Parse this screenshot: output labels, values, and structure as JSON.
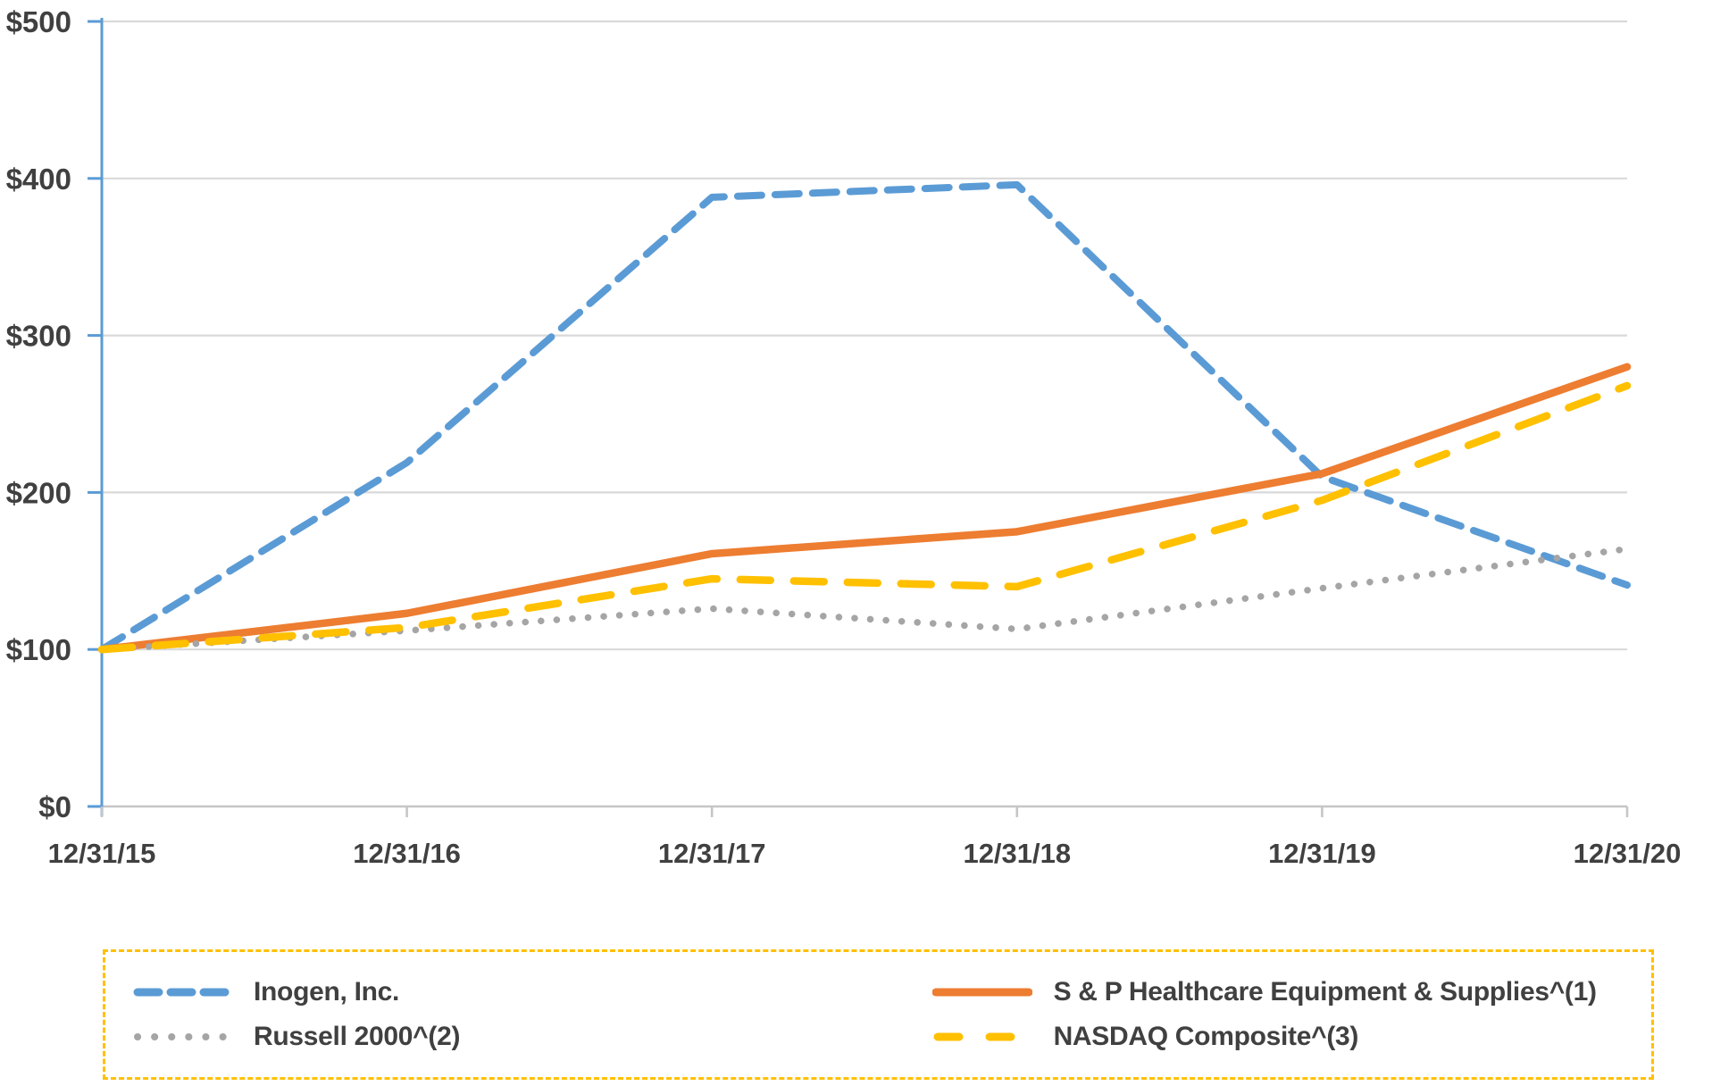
{
  "chart_data": {
    "type": "line",
    "title": "",
    "x_categories": [
      "12/31/15",
      "12/31/16",
      "12/31/17",
      "12/31/18",
      "12/31/19",
      "12/31/20"
    ],
    "y_tick_labels": [
      "$0",
      "$100",
      "$200",
      "$300",
      "$400",
      "$500"
    ],
    "ylim": [
      0,
      500
    ],
    "grid": "horizontal",
    "legend_position": "bottom",
    "series": [
      {
        "name": "Inogen, Inc.",
        "values": [
          100,
          219,
          388,
          396,
          210,
          141
        ],
        "color": "#5B9BD5",
        "style": "dashed"
      },
      {
        "name": "S & P Healthcare Equipment & Supplies^(1)",
        "values": [
          100,
          123,
          161,
          175,
          212,
          280
        ],
        "color": "#ED7D31",
        "style": "solid"
      },
      {
        "name": "Russell 2000^(2)",
        "values": [
          100,
          112,
          126,
          113,
          139,
          164
        ],
        "color": "#A5A5A5",
        "style": "dotted"
      },
      {
        "name": "NASDAQ Composite^(3)",
        "values": [
          100,
          114,
          145,
          140,
          195,
          268
        ],
        "color": "#FFC000",
        "style": "dashed-long"
      }
    ],
    "colors": {
      "y_axis": "#5B9BD5",
      "x_axis": "#C6C6C6",
      "gridline": "#D9D9D9",
      "axis_label": "#404040",
      "legend_border": "#FFC000"
    }
  }
}
